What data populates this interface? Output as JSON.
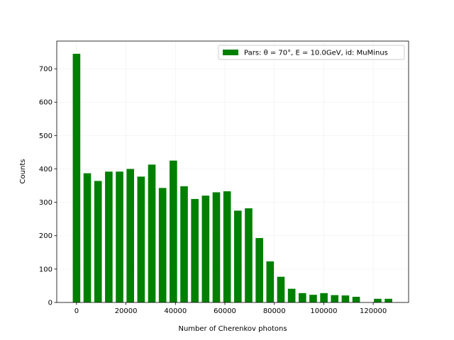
{
  "chart_data": {
    "type": "histogram",
    "xlabel": "Number of Cherenkov photons",
    "ylabel": "Counts",
    "bins": [
      -2175,
      2175,
      6525,
      10875,
      15225,
      19575,
      23925,
      28275,
      32625,
      36975,
      41325,
      45675,
      50025,
      54375,
      58725,
      63075,
      67425,
      71775,
      76125,
      80475,
      84825,
      89175,
      93525,
      97875,
      102225,
      106575,
      110925,
      115275,
      119625,
      123975,
      128325
    ],
    "series": [
      {
        "name": "Pars: θ = 70°, E = 10.0GeV, id: MuMinus",
        "color": "#008000",
        "values": [
          745,
          387,
          364,
          392,
          392,
          400,
          377,
          413,
          343,
          425,
          348,
          310,
          320,
          330,
          333,
          275,
          282,
          193,
          123,
          77,
          41,
          28,
          23,
          28,
          22,
          21,
          17,
          0,
          11,
          11
        ]
      }
    ],
    "xlim": [
      -8000,
      134300
    ],
    "xticks": [
      0,
      20000,
      40000,
      60000,
      80000,
      100000,
      120000
    ],
    "ylim": [
      0,
      783
    ],
    "yticks": [
      0,
      100,
      200,
      300,
      400,
      500,
      600,
      700
    ],
    "grid": true,
    "legend": "upper right"
  }
}
